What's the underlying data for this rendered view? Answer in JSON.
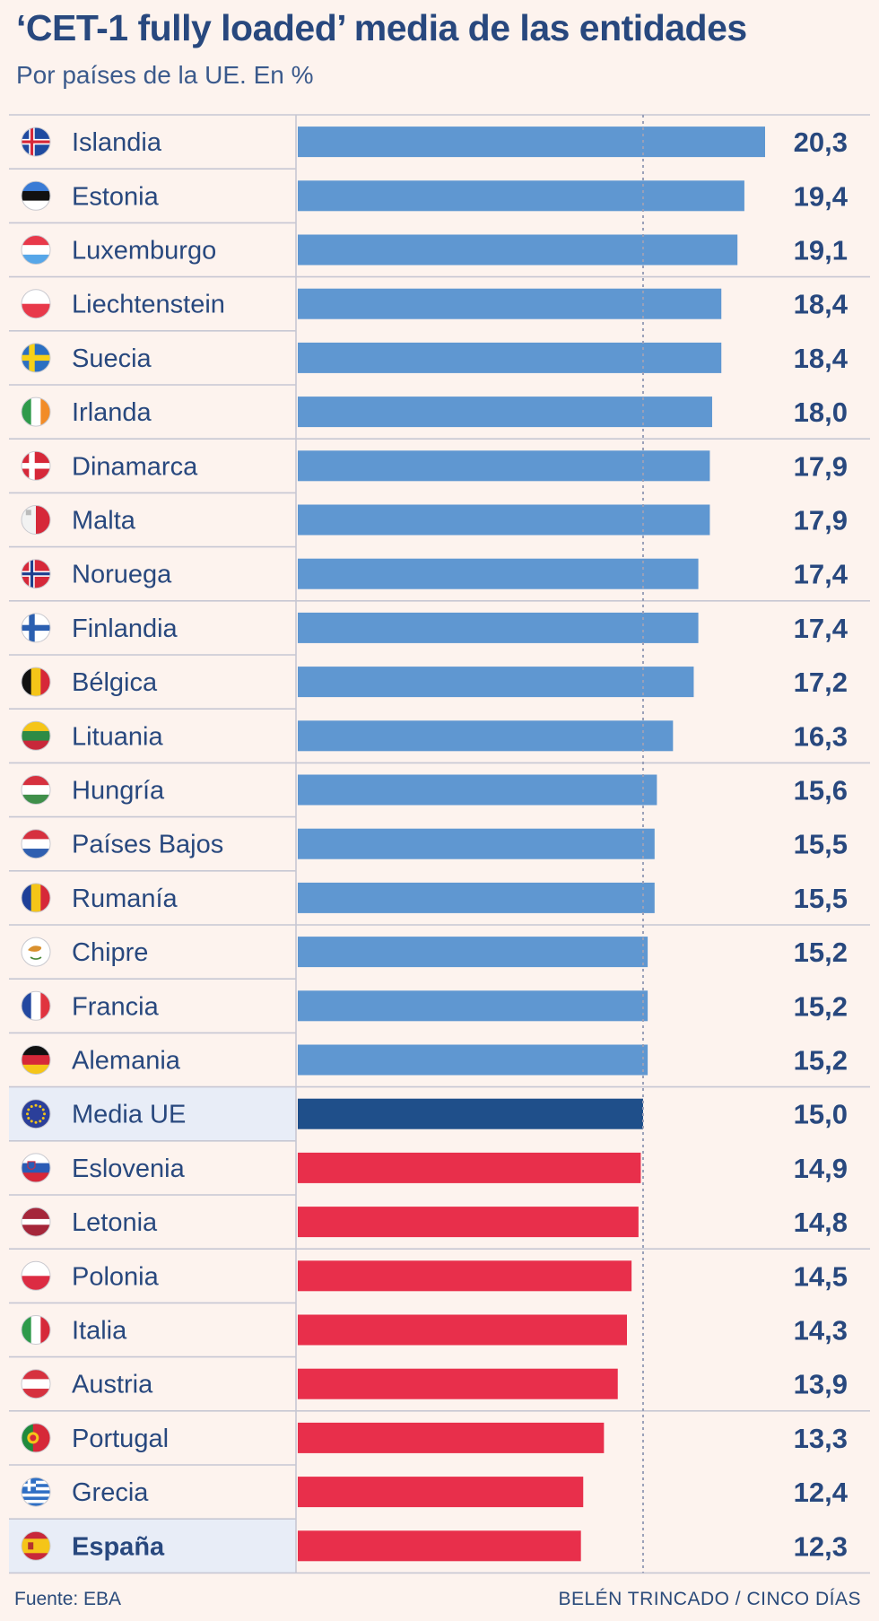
{
  "chart_data": {
    "type": "bar",
    "orientation": "horizontal",
    "title": "‘CET-1 fully loaded’ media de las entidades",
    "subtitle": "Por países de la UE. En %",
    "unit": "%",
    "reference_line": 15.0,
    "categories": [
      "Islandia",
      "Estonia",
      "Luxemburgo",
      "Liechtenstein",
      "Suecia",
      "Irlanda",
      "Dinamarca",
      "Malta",
      "Noruega",
      "Finlandia",
      "Bélgica",
      "Lituania",
      "Hungría",
      "Países Bajos",
      "Rumanía",
      "Chipre",
      "Francia",
      "Alemania",
      "Media UE",
      "Eslovenia",
      "Letonia",
      "Polonia",
      "Italia",
      "Austria",
      "Portugal",
      "Grecia",
      "España"
    ],
    "values": [
      20.3,
      19.4,
      19.1,
      18.4,
      18.4,
      18.0,
      17.9,
      17.9,
      17.4,
      17.4,
      17.2,
      16.3,
      15.6,
      15.5,
      15.5,
      15.2,
      15.2,
      15.2,
      15.0,
      14.9,
      14.8,
      14.5,
      14.3,
      13.9,
      13.3,
      12.4,
      12.3
    ],
    "value_labels": [
      "20,3",
      "19,4",
      "19,1",
      "18,4",
      "18,4",
      "18,0",
      "17,9",
      "17,9",
      "17,4",
      "17,4",
      "17,2",
      "16,3",
      "15,6",
      "15,5",
      "15,5",
      "15,2",
      "15,2",
      "15,2",
      "15,0",
      "14,9",
      "14,8",
      "14,5",
      "14,3",
      "13,9",
      "13,3",
      "12,4",
      "12,3"
    ],
    "highlighted": [
      "Media UE",
      "España"
    ],
    "flags": [
      "iceland-flag-icon",
      "estonia-flag-icon",
      "luxembourg-flag-icon",
      "liechtenstein-flag-icon",
      "sweden-flag-icon",
      "ireland-flag-icon",
      "denmark-flag-icon",
      "malta-flag-icon",
      "norway-flag-icon",
      "finland-flag-icon",
      "belgium-flag-icon",
      "lithuania-flag-icon",
      "hungary-flag-icon",
      "netherlands-flag-icon",
      "romania-flag-icon",
      "cyprus-flag-icon",
      "france-flag-icon",
      "germany-flag-icon",
      "eu-flag-icon",
      "slovenia-flag-icon",
      "latvia-flag-icon",
      "poland-flag-icon",
      "italy-flag-icon",
      "austria-flag-icon",
      "portugal-flag-icon",
      "greece-flag-icon",
      "spain-flag-icon"
    ],
    "colors": {
      "above_average": "#5f97d1",
      "average": "#1f4f8a",
      "below_average": "#e82f4b",
      "text": "#28487e",
      "grid": "#c7c7d3",
      "highlight_row": "#e8edf7"
    }
  },
  "footer": {
    "source": "Fuente: EBA",
    "credit": "BELÉN TRINCADO / CINCO DÍAS"
  }
}
